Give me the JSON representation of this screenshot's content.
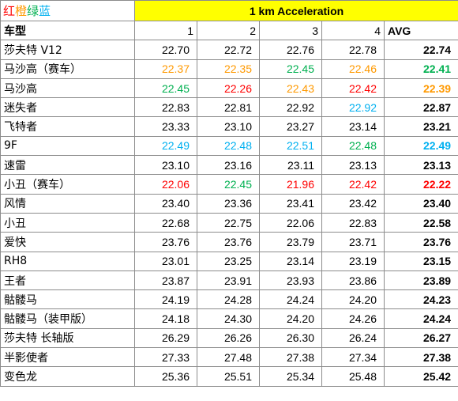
{
  "legend": {
    "items": [
      {
        "text": "红",
        "color": "#ff0000"
      },
      {
        "text": "橙",
        "color": "#ff9900"
      },
      {
        "text": "绿",
        "color": "#00b050"
      },
      {
        "text": "蓝",
        "color": "#00b0f0"
      }
    ]
  },
  "title": "1 km Acceleration",
  "header": {
    "car_label": "车型",
    "runs": [
      "1",
      "2",
      "3",
      "4"
    ],
    "avg_label": "AVG"
  },
  "colors": {
    "red": "#ff0000",
    "orange": "#ff9900",
    "green": "#00b050",
    "blue": "#00b0f0",
    "black": "#000000",
    "title_bg": "#ffff00"
  },
  "rows": [
    {
      "name": "莎夫特 V12",
      "runs": [
        "22.70",
        "22.72",
        "22.76",
        "22.78"
      ],
      "avg": "22.74",
      "run_colors": [
        "black",
        "black",
        "black",
        "black"
      ],
      "avg_color": "black"
    },
    {
      "name": "马沙高（赛车）",
      "runs": [
        "22.37",
        "22.35",
        "22.45",
        "22.46"
      ],
      "avg": "22.41",
      "run_colors": [
        "orange",
        "orange",
        "green",
        "orange"
      ],
      "avg_color": "green"
    },
    {
      "name": "马沙高",
      "runs": [
        "22.45",
        "22.26",
        "22.43",
        "22.42"
      ],
      "avg": "22.39",
      "run_colors": [
        "green",
        "red",
        "orange",
        "red"
      ],
      "avg_color": "orange"
    },
    {
      "name": "迷失者",
      "runs": [
        "22.83",
        "22.81",
        "22.92",
        "22.92"
      ],
      "avg": "22.87",
      "run_colors": [
        "black",
        "black",
        "black",
        "blue"
      ],
      "avg_color": "black"
    },
    {
      "name": "飞特者",
      "runs": [
        "23.33",
        "23.10",
        "23.27",
        "23.14"
      ],
      "avg": "23.21",
      "run_colors": [
        "black",
        "black",
        "black",
        "black"
      ],
      "avg_color": "black"
    },
    {
      "name": "9F",
      "runs": [
        "22.49",
        "22.48",
        "22.51",
        "22.48"
      ],
      "avg": "22.49",
      "run_colors": [
        "blue",
        "blue",
        "blue",
        "green"
      ],
      "avg_color": "blue"
    },
    {
      "name": "速雷",
      "runs": [
        "23.10",
        "23.16",
        "23.11",
        "23.13"
      ],
      "avg": "23.13",
      "run_colors": [
        "black",
        "black",
        "black",
        "black"
      ],
      "avg_color": "black"
    },
    {
      "name": "小丑（赛车）",
      "runs": [
        "22.06",
        "22.45",
        "21.96",
        "22.42"
      ],
      "avg": "22.22",
      "run_colors": [
        "red",
        "green",
        "red",
        "red"
      ],
      "avg_color": "red"
    },
    {
      "name": "风情",
      "runs": [
        "23.40",
        "23.36",
        "23.41",
        "23.42"
      ],
      "avg": "23.40",
      "run_colors": [
        "black",
        "black",
        "black",
        "black"
      ],
      "avg_color": "black"
    },
    {
      "name": "小丑",
      "runs": [
        "22.68",
        "22.75",
        "22.06",
        "22.83"
      ],
      "avg": "22.58",
      "run_colors": [
        "black",
        "black",
        "black",
        "black"
      ],
      "avg_color": "black"
    },
    {
      "name": "爱快",
      "runs": [
        "23.76",
        "23.76",
        "23.79",
        "23.71"
      ],
      "avg": "23.76",
      "run_colors": [
        "black",
        "black",
        "black",
        "black"
      ],
      "avg_color": "black"
    },
    {
      "name": "RH8",
      "runs": [
        "23.01",
        "23.25",
        "23.14",
        "23.19"
      ],
      "avg": "23.15",
      "run_colors": [
        "black",
        "black",
        "black",
        "black"
      ],
      "avg_color": "black"
    },
    {
      "name": "王者",
      "runs": [
        "23.87",
        "23.91",
        "23.93",
        "23.86"
      ],
      "avg": "23.89",
      "run_colors": [
        "black",
        "black",
        "black",
        "black"
      ],
      "avg_color": "black"
    },
    {
      "name": "骷髅马",
      "runs": [
        "24.19",
        "24.28",
        "24.24",
        "24.20"
      ],
      "avg": "24.23",
      "run_colors": [
        "black",
        "black",
        "black",
        "black"
      ],
      "avg_color": "black"
    },
    {
      "name": "骷髅马（装甲版）",
      "runs": [
        "24.18",
        "24.30",
        "24.20",
        "24.26"
      ],
      "avg": "24.24",
      "run_colors": [
        "black",
        "black",
        "black",
        "black"
      ],
      "avg_color": "black"
    },
    {
      "name": "莎夫特 长轴版",
      "runs": [
        "26.29",
        "26.26",
        "26.30",
        "26.24"
      ],
      "avg": "26.27",
      "run_colors": [
        "black",
        "black",
        "black",
        "black"
      ],
      "avg_color": "black"
    },
    {
      "name": "半影使者",
      "runs": [
        "27.33",
        "27.48",
        "27.38",
        "27.34"
      ],
      "avg": "27.38",
      "run_colors": [
        "black",
        "black",
        "black",
        "black"
      ],
      "avg_color": "black"
    },
    {
      "name": "变色龙",
      "runs": [
        "25.36",
        "25.51",
        "25.34",
        "25.48"
      ],
      "avg": "25.42",
      "run_colors": [
        "black",
        "black",
        "black",
        "black"
      ],
      "avg_color": "black"
    }
  ]
}
